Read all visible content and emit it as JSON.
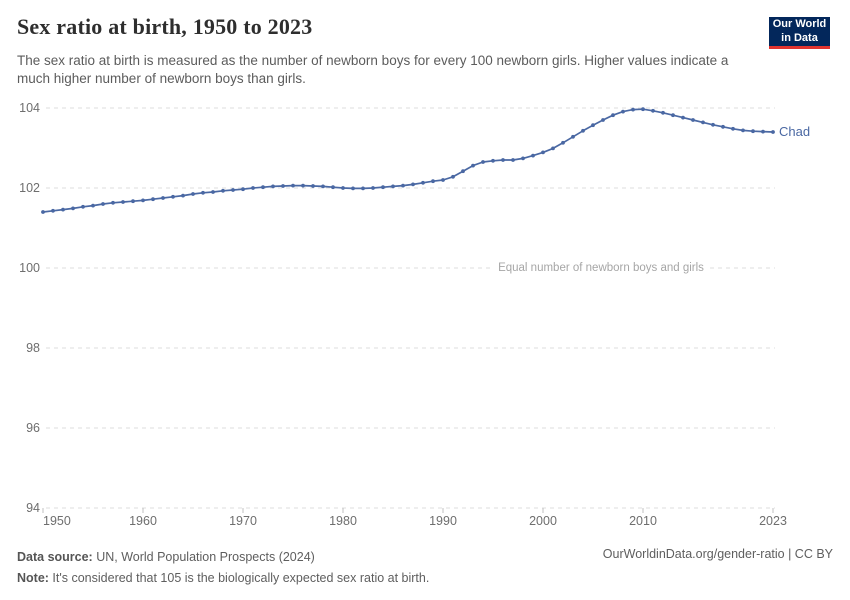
{
  "header": {
    "title": "Sex ratio at birth, 1950 to 2023",
    "subtitle": "The sex ratio at birth is measured as the number of newborn boys for every 100 newborn girls. Higher values indicate a much higher number of newborn boys than girls.",
    "logo_line1": "Our World",
    "logo_line2": "in Data",
    "logo_bg_color": "#03275B",
    "logo_accent_color": "#E2342F"
  },
  "chart_data": {
    "type": "line",
    "title": "Sex ratio at birth, 1950 to 2023",
    "xlabel": "",
    "ylabel": "",
    "xlim": [
      1950,
      2023
    ],
    "ylim": [
      94,
      104
    ],
    "xticks": [
      1950,
      1960,
      1970,
      1980,
      1990,
      2000,
      2010,
      2023
    ],
    "yticks": [
      94,
      96,
      98,
      100,
      102,
      104
    ],
    "grid": "horizontal-dashed",
    "gridline_color": "#dcdcdc",
    "tick_color": "#c0c0c0",
    "legend_position": "end-of-line-label",
    "x": [
      1950,
      1951,
      1952,
      1953,
      1954,
      1955,
      1956,
      1957,
      1958,
      1959,
      1960,
      1961,
      1962,
      1963,
      1964,
      1965,
      1966,
      1967,
      1968,
      1969,
      1970,
      1971,
      1972,
      1973,
      1974,
      1975,
      1976,
      1977,
      1978,
      1979,
      1980,
      1981,
      1982,
      1983,
      1984,
      1985,
      1986,
      1987,
      1988,
      1989,
      1990,
      1991,
      1992,
      1993,
      1994,
      1995,
      1996,
      1997,
      1998,
      1999,
      2000,
      2001,
      2002,
      2003,
      2004,
      2005,
      2006,
      2007,
      2008,
      2009,
      2010,
      2011,
      2012,
      2013,
      2014,
      2015,
      2016,
      2017,
      2018,
      2019,
      2020,
      2021,
      2022,
      2023
    ],
    "series": [
      {
        "name": "Chad",
        "color": "#4A68A3",
        "values": [
          101.4,
          101.43,
          101.46,
          101.49,
          101.53,
          101.56,
          101.6,
          101.63,
          101.65,
          101.67,
          101.69,
          101.72,
          101.75,
          101.78,
          101.81,
          101.85,
          101.88,
          101.9,
          101.93,
          101.95,
          101.97,
          102.0,
          102.02,
          102.04,
          102.05,
          102.06,
          102.06,
          102.05,
          102.04,
          102.02,
          102.0,
          101.99,
          101.99,
          102.0,
          102.02,
          102.04,
          102.06,
          102.09,
          102.13,
          102.17,
          102.2,
          102.28,
          102.42,
          102.56,
          102.65,
          102.68,
          102.7,
          102.7,
          102.74,
          102.81,
          102.89,
          102.99,
          103.13,
          103.28,
          103.43,
          103.57,
          103.7,
          103.82,
          103.91,
          103.96,
          103.97,
          103.93,
          103.88,
          103.82,
          103.76,
          103.7,
          103.64,
          103.58,
          103.53,
          103.48,
          103.44,
          103.42,
          103.41,
          103.4
        ]
      }
    ],
    "annotation": {
      "text": "Equal number of newborn boys and girls",
      "y": 100
    }
  },
  "footer": {
    "datasource_label": "Data source:",
    "datasource_value": " UN, World Population Prospects (2024)",
    "note_label": "Note:",
    "note_value": " It's considered that 105 is the biologically expected sex ratio at birth.",
    "credit": "OurWorldinData.org/gender-ratio | CC BY"
  }
}
